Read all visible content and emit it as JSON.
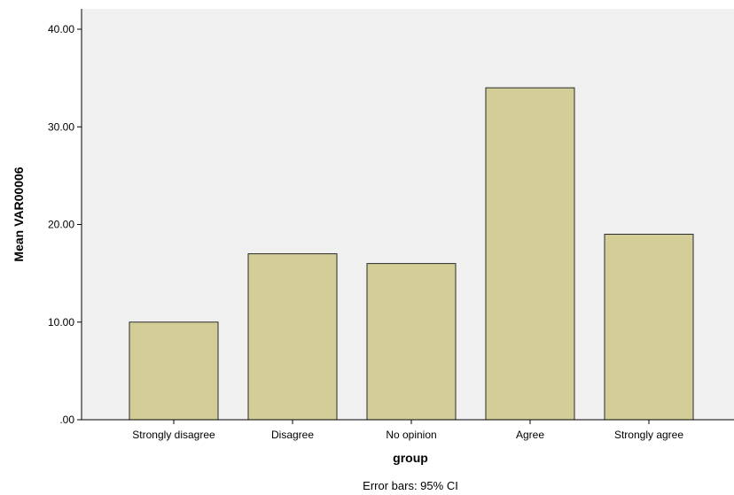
{
  "chart_data": {
    "type": "bar",
    "categories": [
      "Strongly disagree",
      "Disagree",
      "No opinion",
      "Agree",
      "Strongly agree"
    ],
    "values": [
      10,
      17,
      16,
      34,
      19
    ],
    "xlabel": "group",
    "ylabel": "Mean VAR00006",
    "ylim": [
      0,
      40
    ],
    "yticks": [
      0,
      10,
      20,
      30,
      40
    ],
    "ytick_labels": [
      ".00",
      "10.00",
      "20.00",
      "30.00",
      "40.00"
    ],
    "footnote": "Error bars: 95% CI",
    "grid": false,
    "plot_background": "#f0f0f0",
    "bar_color": "#d3ce98",
    "bar_edge_color": "#2a2a2a"
  }
}
